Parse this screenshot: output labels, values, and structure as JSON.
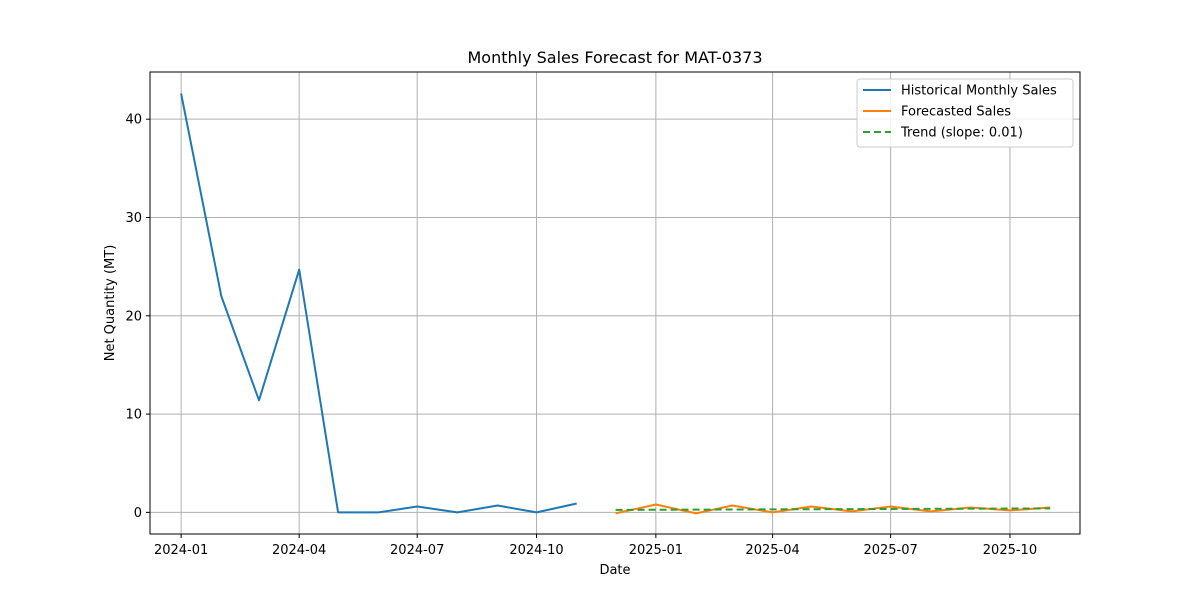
{
  "chart_data": {
    "type": "line",
    "title": "Monthly Sales Forecast for MAT-0373",
    "xlabel": "Date",
    "ylabel": "Net Quantity (MT)",
    "x_ticks": [
      "2024-01",
      "2024-04",
      "2024-07",
      "2024-10",
      "2025-01",
      "2025-04",
      "2025-07",
      "2025-10"
    ],
    "y_ticks": [
      0,
      10,
      20,
      30,
      40
    ],
    "ylim": [
      -2.2,
      44.8
    ],
    "xlim": [
      "2023-12-08",
      "2025-11-24"
    ],
    "grid": true,
    "legend_position": "top-right",
    "series": [
      {
        "name": "Historical Monthly Sales",
        "color": "#1f77b4",
        "style": "solid",
        "x": [
          "2024-01-01",
          "2024-02-01",
          "2024-03-01",
          "2024-04-01",
          "2024-05-01",
          "2024-06-01",
          "2024-07-01",
          "2024-08-01",
          "2024-09-01",
          "2024-10-01",
          "2024-11-01"
        ],
        "y": [
          42.6,
          22.0,
          11.4,
          24.7,
          0.0,
          0.0,
          0.6,
          0.0,
          0.7,
          0.0,
          0.9
        ]
      },
      {
        "name": "Forecasted Sales",
        "color": "#ff7f0e",
        "style": "solid",
        "x": [
          "2024-12-01",
          "2025-01-01",
          "2025-02-01",
          "2025-03-01",
          "2025-04-01",
          "2025-05-01",
          "2025-06-01",
          "2025-07-01",
          "2025-08-01",
          "2025-09-01",
          "2025-10-01",
          "2025-11-01"
        ],
        "y": [
          -0.1,
          0.8,
          -0.1,
          0.7,
          0.0,
          0.6,
          0.1,
          0.6,
          0.1,
          0.5,
          0.2,
          0.5
        ]
      },
      {
        "name": "Trend (slope: 0.01)",
        "color": "#2ca02c",
        "style": "dashed",
        "x": [
          "2024-12-01",
          "2025-11-01"
        ],
        "y": [
          0.25,
          0.4
        ]
      }
    ]
  }
}
